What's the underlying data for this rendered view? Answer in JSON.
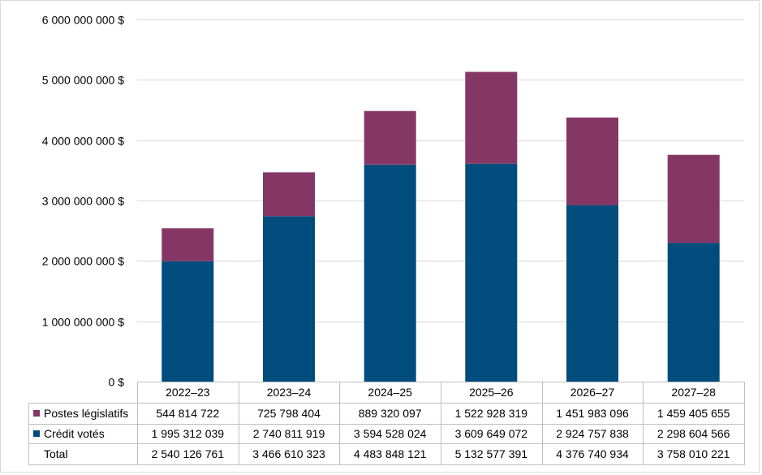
{
  "chart_data": {
    "type": "bar",
    "stacked": true,
    "categories": [
      "2022–23",
      "2023–24",
      "2024–25",
      "2025–26",
      "2026–27",
      "2027–28"
    ],
    "series": [
      {
        "name": "Crédit votés",
        "color": "#004c7d",
        "values": [
          1995312039,
          2740811919,
          3594528024,
          3609649072,
          2924757838,
          2298604566
        ],
        "labels": [
          "1 995 312 039",
          "2 740 811 919",
          "3 594 528 024",
          "3 609 649 072",
          "2 924 757 838",
          "2 298 604 566"
        ]
      },
      {
        "name": "Postes législatifs",
        "color": "#843765",
        "values": [
          544814722,
          725798404,
          889320097,
          1522928319,
          1451983096,
          1459405655
        ],
        "labels": [
          "544 814 722",
          "725 798 404",
          "889 320 097",
          "1 522 928 319",
          "1 451 983 096",
          "1 459 405 655"
        ]
      }
    ],
    "total": {
      "name": "Total",
      "labels": [
        "2 540 126 761",
        "3 466 610 323",
        "4 483 848 121",
        "5 132 577 391",
        "4 376 740 934",
        "3 758 010 221"
      ]
    },
    "ylim": [
      0,
      6000000000
    ],
    "yticks": [
      {
        "value": 0,
        "label": "0 $"
      },
      {
        "value": 1000000000,
        "label": "1 000 000 000 $"
      },
      {
        "value": 2000000000,
        "label": "2 000 000 000 $"
      },
      {
        "value": 3000000000,
        "label": "3 000 000 000 $"
      },
      {
        "value": 4000000000,
        "label": "4 000 000 000 $"
      },
      {
        "value": 5000000000,
        "label": "5 000 000 000 $"
      },
      {
        "value": 6000000000,
        "label": "6 000 000 000 $"
      }
    ],
    "grid": true,
    "legend": "data-table",
    "title": "",
    "xlabel": "",
    "ylabel": ""
  }
}
